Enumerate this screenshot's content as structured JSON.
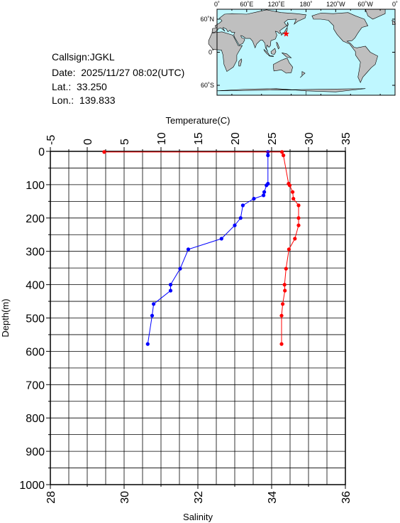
{
  "station": {
    "callsign": "Callsign:JGKL",
    "date": "Date:  2025/11/27 08:02(UTC)",
    "lat": "Lat.:  33.250",
    "lon": "Lon.:  139.833"
  },
  "map": {
    "lon_ticks": [
      "0˚",
      "60˚E",
      "120˚E",
      "180˚",
      "120˚W",
      "60˚W",
      "0˚"
    ],
    "lat_ticks": [
      "60˚N",
      "0˚",
      "60˚S"
    ],
    "station_lon": 139.833,
    "station_lat": 33.25,
    "colors": {
      "ocean": "#bff7ff",
      "land": "#bfbfbf",
      "marker": "#ff0000"
    }
  },
  "chart_data": {
    "type": "line",
    "ylabel": "Depth(m)",
    "top_axis_label": "Temperature(C)",
    "bottom_axis_label": "Salinity",
    "ylim": [
      0,
      1000
    ],
    "yticks": [
      "0",
      "100",
      "200",
      "300",
      "400",
      "500",
      "600",
      "700",
      "800",
      "900",
      "1000"
    ],
    "temperature_xlim": [
      -5,
      35
    ],
    "temperature_ticks": [
      "-5",
      "0",
      "5",
      "10",
      "15",
      "20",
      "25",
      "30",
      "35"
    ],
    "salinity_xlim": [
      28,
      36
    ],
    "salinity_ticks": [
      "28",
      "30",
      "32",
      "34",
      "36"
    ],
    "grid": true,
    "series": [
      {
        "variable": "temperature",
        "color": "#0000ff",
        "points": [
          [
            24.5,
            2
          ],
          [
            24.5,
            12
          ],
          [
            24.5,
            97
          ],
          [
            24.3,
            102
          ],
          [
            24.0,
            122
          ],
          [
            23.9,
            132
          ],
          [
            22.6,
            142
          ],
          [
            21.1,
            162
          ],
          [
            20.8,
            200
          ],
          [
            20.0,
            222
          ],
          [
            18.2,
            262
          ],
          [
            13.7,
            294
          ],
          [
            12.6,
            352
          ],
          [
            11.3,
            400
          ],
          [
            11.3,
            418
          ],
          [
            9.0,
            458
          ],
          [
            8.8,
            493
          ],
          [
            8.2,
            578
          ]
        ]
      },
      {
        "variable": "salinity",
        "color": "#ff0000",
        "points": [
          [
            29.46,
            2
          ],
          [
            34.28,
            2
          ],
          [
            34.32,
            12
          ],
          [
            34.46,
            97
          ],
          [
            34.49,
            102
          ],
          [
            34.57,
            122
          ],
          [
            34.59,
            142
          ],
          [
            34.73,
            162
          ],
          [
            34.73,
            200
          ],
          [
            34.73,
            222
          ],
          [
            34.63,
            262
          ],
          [
            34.47,
            294
          ],
          [
            34.39,
            352
          ],
          [
            34.35,
            400
          ],
          [
            34.36,
            418
          ],
          [
            34.3,
            458
          ],
          [
            34.27,
            493
          ],
          [
            34.27,
            578
          ]
        ]
      }
    ]
  }
}
